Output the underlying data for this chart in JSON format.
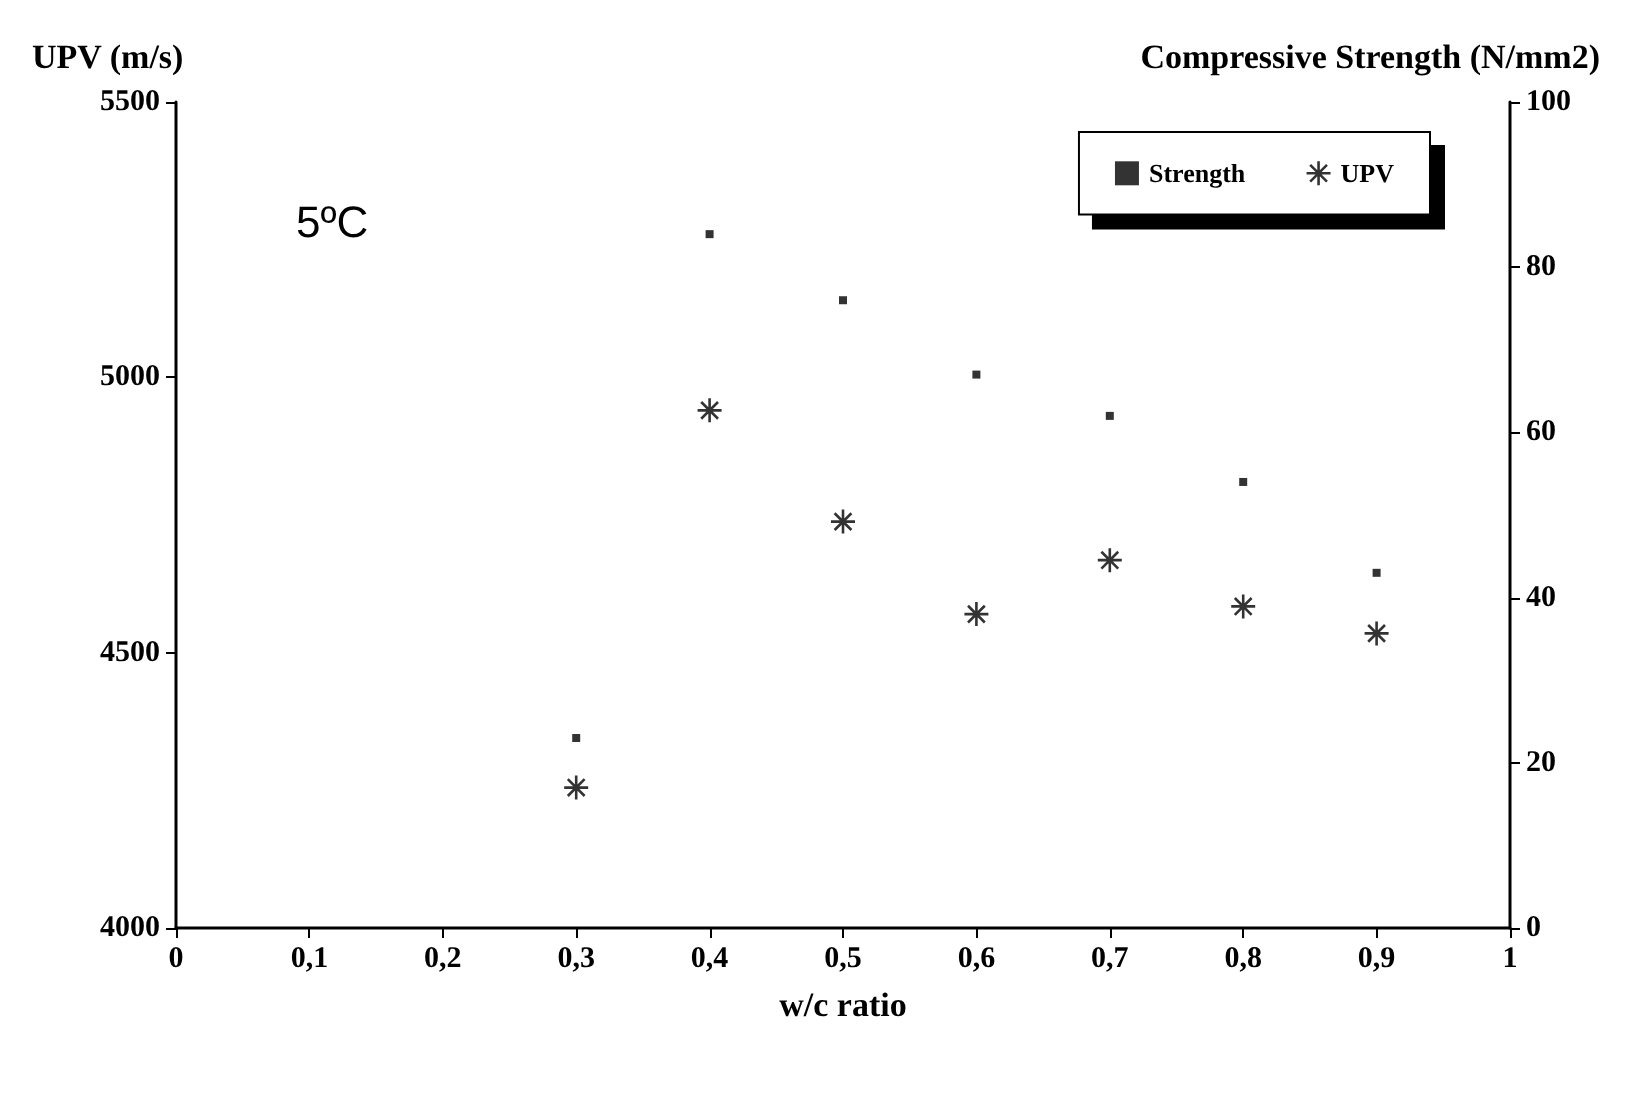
{
  "chart_data": {
    "type": "scatter",
    "xlabel": "w/c ratio",
    "ylabel": "UPV (m/s)",
    "y2label": "Compressive Strength (N/mm2)",
    "annotations": [
      "5ºC"
    ],
    "xlim": [
      0,
      1
    ],
    "xticks": [
      0,
      {
        "value": 0.1,
        "label": "0,1"
      },
      {
        "value": 0.2,
        "label": "0,2"
      },
      {
        "value": 0.3,
        "label": "0,3"
      },
      {
        "value": 0.4,
        "label": "0,4"
      },
      {
        "value": 0.5,
        "label": "0,5"
      },
      {
        "value": 0.6,
        "label": "0,6"
      },
      {
        "value": 0.7,
        "label": "0,7"
      },
      {
        "value": 0.8,
        "label": "0,8"
      },
      {
        "value": 0.9,
        "label": "0,9"
      },
      1
    ],
    "ylim": [
      4000,
      5500
    ],
    "yticks": [
      4000,
      4500,
      5000,
      5500
    ],
    "y2lim": [
      0,
      100
    ],
    "y2ticks": [
      0,
      20,
      40,
      60,
      80,
      100
    ],
    "grid": false,
    "legend": "top right",
    "x": [
      0.3,
      0.4,
      0.5,
      0.6,
      0.7,
      0.8,
      0.9
    ],
    "series": [
      {
        "name": "Strength",
        "color": "#000000",
        "marker": "square",
        "axis": "y2",
        "values": [
          23,
          84,
          76,
          67,
          62,
          54,
          43
        ]
      },
      {
        "name": "UPV",
        "color": "#000000",
        "marker": "cross",
        "values": [
          4255,
          4940,
          4738,
          4570,
          4668,
          4584,
          4535
        ]
      }
    ]
  }
}
